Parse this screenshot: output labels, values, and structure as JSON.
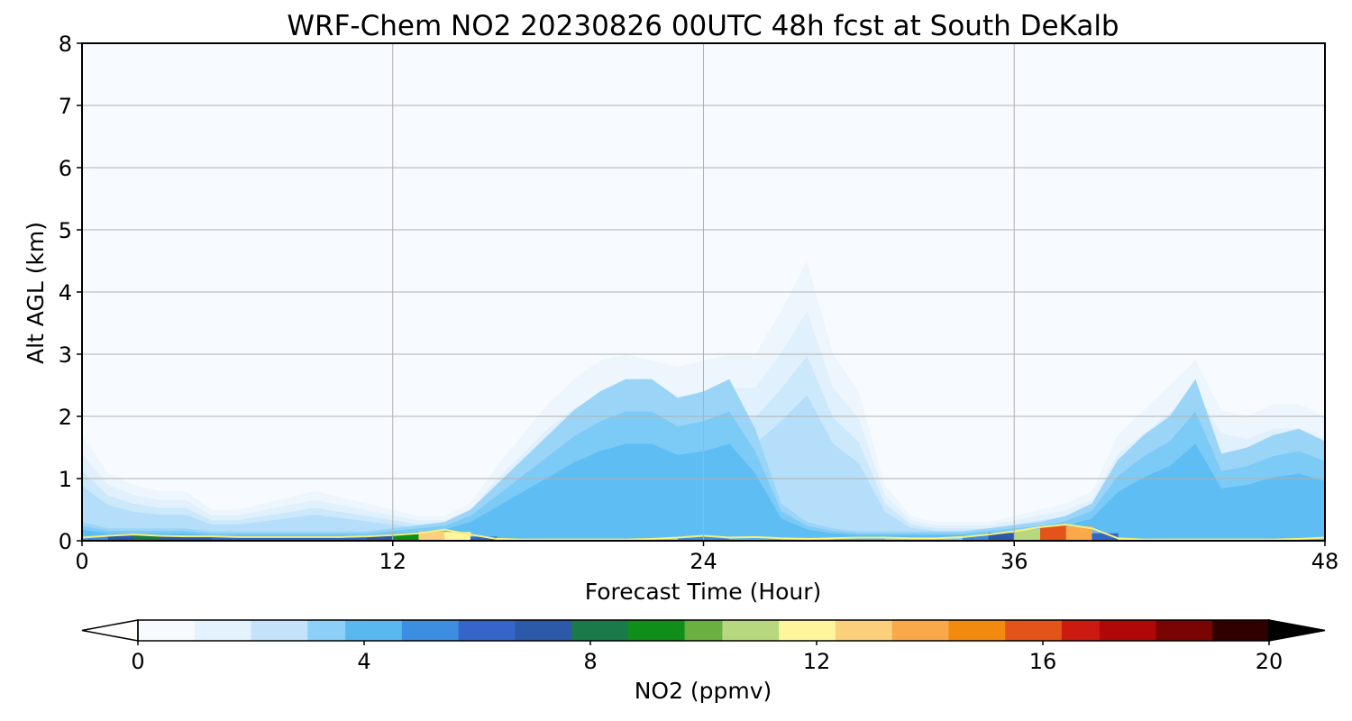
{
  "chart_data": {
    "type": "heatmap",
    "title": "WRF-Chem NO2  20230826 00UTC 48h fcst at South DeKalb",
    "xlabel": "Forecast Time (Hour)",
    "ylabel": "Alt AGL (km)",
    "xlim": [
      0,
      48
    ],
    "ylim": [
      0,
      8
    ],
    "xticks": [
      "0",
      "12",
      "24",
      "36",
      "48"
    ],
    "yticks": [
      "0",
      "1",
      "2",
      "3",
      "4",
      "5",
      "6",
      "7",
      "8"
    ],
    "grid": true,
    "x": [
      0,
      1,
      2,
      3,
      4,
      5,
      6,
      7,
      8,
      9,
      10,
      11,
      12,
      13,
      14,
      15,
      16,
      17,
      18,
      19,
      20,
      21,
      22,
      23,
      24,
      25,
      26,
      27,
      28,
      29,
      30,
      31,
      32,
      33,
      34,
      35,
      36,
      37,
      38,
      39,
      40,
      41,
      42,
      43,
      44,
      45,
      46,
      47,
      48
    ],
    "series": [
      {
        "field": "plume_top_km",
        "values": [
          1.7,
          1.1,
          0.9,
          0.8,
          0.8,
          0.5,
          0.5,
          0.6,
          0.7,
          0.8,
          0.7,
          0.6,
          0.5,
          0.4,
          0.4,
          0.6,
          1.2,
          1.7,
          2.2,
          2.6,
          2.9,
          3.0,
          2.9,
          2.8,
          2.9,
          3.0,
          3.0,
          3.7,
          4.5,
          3.0,
          2.4,
          0.9,
          0.4,
          0.3,
          0.3,
          0.3,
          0.4,
          0.5,
          0.6,
          0.8,
          1.7,
          2.1,
          2.5,
          2.9,
          2.1,
          2.0,
          2.2,
          2.2,
          2.0
        ]
      },
      {
        "field": "core_top_km",
        "values": [
          0.3,
          0.2,
          0.2,
          0.2,
          0.2,
          0.15,
          0.15,
          0.15,
          0.15,
          0.15,
          0.15,
          0.15,
          0.2,
          0.25,
          0.3,
          0.5,
          0.9,
          1.3,
          1.7,
          2.1,
          2.4,
          2.6,
          2.6,
          2.3,
          2.4,
          2.6,
          1.8,
          0.6,
          0.3,
          0.2,
          0.15,
          0.15,
          0.15,
          0.15,
          0.15,
          0.2,
          0.25,
          0.3,
          0.4,
          0.6,
          1.3,
          1.7,
          2.0,
          2.6,
          1.4,
          1.5,
          1.7,
          1.8,
          1.6
        ]
      },
      {
        "field": "surface_no2_ppmv",
        "values": [
          4,
          7,
          8,
          8,
          7,
          7,
          6,
          6,
          6,
          6,
          6,
          7,
          8,
          10,
          15,
          9,
          3,
          2,
          2,
          2,
          2,
          2,
          3,
          4,
          6,
          4,
          5,
          3,
          3,
          4,
          5,
          4,
          3,
          3,
          4,
          6,
          8,
          13,
          18,
          10,
          3,
          2,
          2,
          2,
          2,
          2,
          2,
          3,
          5
        ]
      },
      {
        "field": "surface_layer_depth_km",
        "values": [
          0.05,
          0.08,
          0.1,
          0.08,
          0.07,
          0.07,
          0.06,
          0.06,
          0.06,
          0.06,
          0.06,
          0.07,
          0.09,
          0.12,
          0.18,
          0.1,
          0.03,
          0.02,
          0.02,
          0.02,
          0.02,
          0.02,
          0.03,
          0.05,
          0.08,
          0.05,
          0.06,
          0.04,
          0.03,
          0.04,
          0.05,
          0.05,
          0.04,
          0.04,
          0.06,
          0.1,
          0.15,
          0.22,
          0.26,
          0.2,
          0.04,
          0.02,
          0.02,
          0.02,
          0.02,
          0.02,
          0.02,
          0.03,
          0.05
        ]
      }
    ],
    "colorbar": {
      "label": "NO2  (ppmv)",
      "min": 0,
      "max": 20,
      "ticks": [
        "0",
        "4",
        "8",
        "12",
        "16",
        "20"
      ],
      "extend": "both",
      "colors": [
        "#f7fbff",
        "#e4f2fd",
        "#c4e3fa",
        "#8ccff7",
        "#5ab8f0",
        "#3d8ee0",
        "#3565c8",
        "#2d5aa8",
        "#1a7a4a",
        "#0f8f1a",
        "#6ab040",
        "#b8d880",
        "#fff59d",
        "#fcd07a",
        "#f9a84a",
        "#f28a10",
        "#e2541a",
        "#cc1a10",
        "#b00808",
        "#7a0404",
        "#300000"
      ]
    },
    "legend": "bottom"
  }
}
